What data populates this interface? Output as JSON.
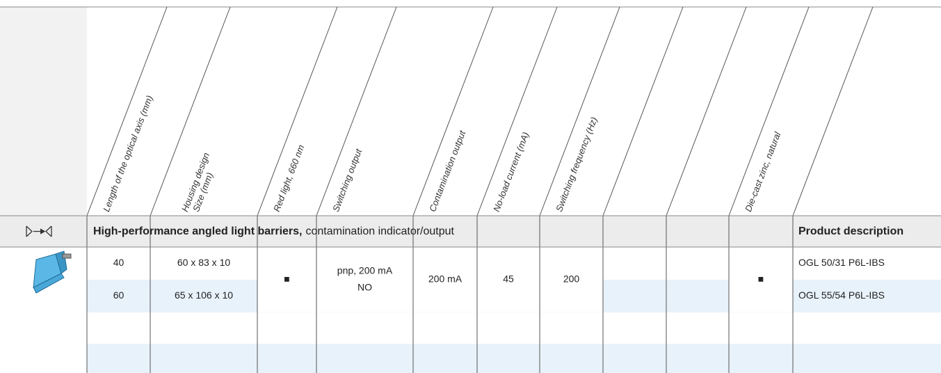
{
  "columns": [
    {
      "lines": [
        "Length of the optical axis (mm)"
      ]
    },
    {
      "lines": [
        "Housing design",
        "Size (mm)"
      ]
    },
    {
      "lines": [
        "Red light, 660 nm"
      ]
    },
    {
      "lines": [
        "Switching output"
      ]
    },
    {
      "lines": [
        "Contamination output"
      ]
    },
    {
      "lines": [
        "No-load current (mA)"
      ]
    },
    {
      "lines": [
        "Switching frequency (Hz)"
      ]
    },
    {
      "lines": []
    },
    {
      "lines": []
    },
    {
      "lines": [
        "Die-cast zinc, natural"
      ]
    }
  ],
  "section": {
    "title_bold": "High-performance angled light barriers,",
    "title_rest": "contamination indicator/output",
    "description_header": "Product description"
  },
  "rows": [
    {
      "cells": [
        "40",
        "60 x 83 x 10"
      ],
      "description": "OGL 50/31 P6L-IBS"
    },
    {
      "cells": [
        "60",
        "65 x 106 x 10"
      ],
      "description": "OGL 55/54 P6L-IBS"
    }
  ],
  "shared": {
    "red_light": "■",
    "switching_output": [
      "pnp, 200 mA",
      "NO"
    ],
    "contamination_output": "200 mA",
    "no_load_current": "45",
    "switching_frequency": "200",
    "die_cast_zinc": "■"
  }
}
